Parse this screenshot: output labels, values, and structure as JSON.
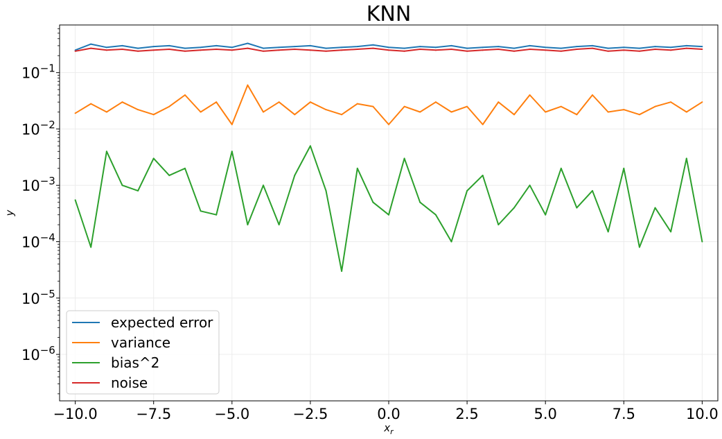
{
  "chart_data": {
    "type": "line",
    "title": "KNN",
    "xlabel": "x_r",
    "ylabel": "y",
    "xlim": [
      -10.5,
      10.5
    ],
    "ylim": [
      1.5e-07,
      0.7
    ],
    "yscale": "log",
    "grid": true,
    "legend_position": "lower-left",
    "x_ticks": [
      -10.0,
      -7.5,
      -5.0,
      -2.5,
      0.0,
      2.5,
      5.0,
      7.5,
      10.0
    ],
    "x_tick_labels": [
      "−10.0",
      "−7.5",
      "−5.0",
      "−2.5",
      "0.0",
      "2.5",
      "5.0",
      "7.5",
      "10.0"
    ],
    "y_ticks": [
      1e-06,
      1e-05,
      0.0001,
      0.001,
      0.01,
      0.1
    ],
    "y_tick_labels": [
      {
        "base": "10",
        "exp": "−6"
      },
      {
        "base": "10",
        "exp": "−5"
      },
      {
        "base": "10",
        "exp": "−4"
      },
      {
        "base": "10",
        "exp": "−3"
      },
      {
        "base": "10",
        "exp": "−2"
      },
      {
        "base": "10",
        "exp": "−1"
      }
    ],
    "x": [
      -10.0,
      -9.5,
      -9.0,
      -8.5,
      -8.0,
      -7.5,
      -7.0,
      -6.5,
      -6.0,
      -5.5,
      -5.0,
      -4.5,
      -4.0,
      -3.5,
      -3.0,
      -2.5,
      -2.0,
      -1.5,
      -1.0,
      -0.5,
      0.0,
      0.5,
      1.0,
      1.5,
      2.0,
      2.5,
      3.0,
      3.5,
      4.0,
      4.5,
      5.0,
      5.5,
      6.0,
      6.5,
      7.0,
      7.5,
      8.0,
      8.5,
      9.0,
      9.5,
      10.0
    ],
    "series": [
      {
        "name": "expected error",
        "color": "#1f77b4",
        "values": [
          0.25,
          0.32,
          0.28,
          0.3,
          0.27,
          0.29,
          0.3,
          0.27,
          0.28,
          0.3,
          0.28,
          0.33,
          0.27,
          0.28,
          0.29,
          0.3,
          0.27,
          0.28,
          0.29,
          0.31,
          0.28,
          0.27,
          0.29,
          0.28,
          0.3,
          0.27,
          0.28,
          0.29,
          0.27,
          0.3,
          0.28,
          0.27,
          0.29,
          0.3,
          0.27,
          0.28,
          0.27,
          0.29,
          0.28,
          0.3,
          0.29
        ]
      },
      {
        "name": "variance",
        "color": "#ff7f0e",
        "values": [
          0.019,
          0.028,
          0.02,
          0.03,
          0.022,
          0.018,
          0.025,
          0.04,
          0.02,
          0.03,
          0.012,
          0.06,
          0.02,
          0.03,
          0.018,
          0.03,
          0.022,
          0.018,
          0.028,
          0.025,
          0.012,
          0.025,
          0.02,
          0.03,
          0.02,
          0.025,
          0.012,
          0.03,
          0.018,
          0.04,
          0.02,
          0.025,
          0.018,
          0.04,
          0.02,
          0.022,
          0.018,
          0.025,
          0.03,
          0.02,
          0.03
        ]
      },
      {
        "name": "bias^2",
        "color": "#2ca02c",
        "values": [
          0.00055,
          8e-05,
          0.004,
          0.001,
          0.0008,
          0.003,
          0.0015,
          0.002,
          0.00035,
          0.0003,
          0.004,
          0.0002,
          0.001,
          0.0002,
          0.0015,
          0.005,
          0.0008,
          3e-05,
          0.002,
          0.0005,
          0.0003,
          0.003,
          0.0005,
          0.0003,
          0.0001,
          0.0008,
          0.0015,
          0.0002,
          0.0004,
          0.001,
          0.0003,
          0.002,
          0.0004,
          0.0008,
          0.00015,
          0.002,
          8e-05,
          0.0004,
          0.00015,
          0.003,
          0.0001
        ]
      },
      {
        "name": "noise",
        "color": "#d62728",
        "values": [
          0.24,
          0.27,
          0.25,
          0.26,
          0.24,
          0.25,
          0.26,
          0.24,
          0.25,
          0.26,
          0.25,
          0.27,
          0.24,
          0.25,
          0.26,
          0.25,
          0.24,
          0.25,
          0.26,
          0.27,
          0.25,
          0.24,
          0.26,
          0.25,
          0.26,
          0.24,
          0.25,
          0.26,
          0.24,
          0.26,
          0.25,
          0.24,
          0.26,
          0.27,
          0.24,
          0.25,
          0.24,
          0.26,
          0.25,
          0.27,
          0.26
        ]
      }
    ]
  }
}
